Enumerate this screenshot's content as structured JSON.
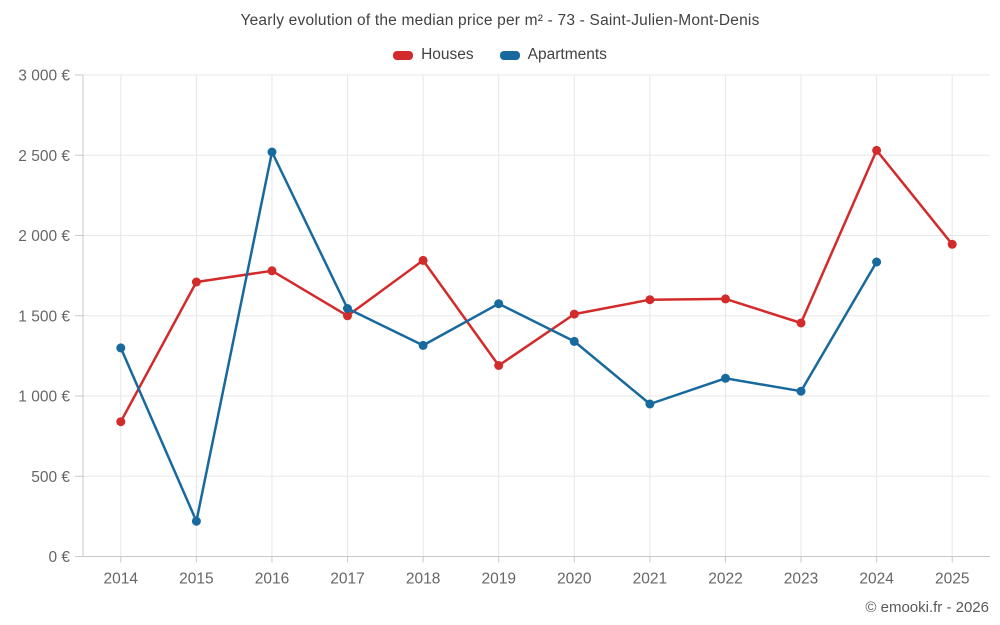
{
  "chart_data": {
    "type": "line",
    "title": "Yearly evolution of the median price per m² - 73 - Saint-Julien-Mont-Denis",
    "categories": [
      "2014",
      "2015",
      "2016",
      "2017",
      "2018",
      "2019",
      "2020",
      "2021",
      "2022",
      "2023",
      "2024",
      "2025"
    ],
    "series": [
      {
        "name": "Houses",
        "color": "#d32b2b",
        "values": [
          840,
          1710,
          1780,
          1500,
          1845,
          1190,
          1510,
          1600,
          1605,
          1455,
          2530,
          1945
        ]
      },
      {
        "name": "Apartments",
        "color": "#17699e",
        "values": [
          1300,
          220,
          2520,
          1545,
          1315,
          1575,
          1340,
          950,
          1110,
          1030,
          1835,
          null
        ]
      }
    ],
    "xlabel": "",
    "ylabel": "",
    "ylim": [
      0,
      3000
    ],
    "y_tick_step": 500,
    "y_tick_labels": [
      "0 €",
      "500 €",
      "1 000 €",
      "1 500 €",
      "2 000 €",
      "2 500 €",
      "3 000 €"
    ],
    "grid": true,
    "legend_position": "top"
  },
  "legend": {
    "houses_label": "Houses",
    "apartments_label": "Apartments"
  },
  "footer": {
    "copyright": "© emooki.fr - 2026"
  },
  "colors": {
    "houses": "#d32b2b",
    "apartments": "#17699e",
    "grid": "#e7e7e7",
    "axis": "#c9c9c9",
    "tick_label": "#666666",
    "title_text": "#424242",
    "footer_text": "#595959"
  }
}
